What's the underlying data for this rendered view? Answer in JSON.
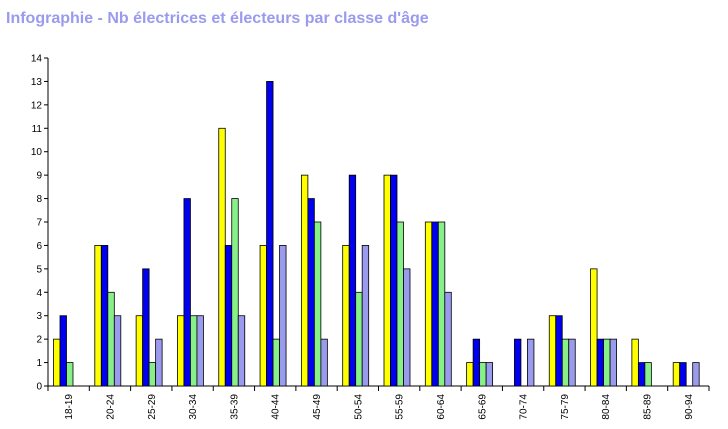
{
  "chart_data": {
    "type": "bar",
    "title": "Infographie - Nb électrices et électeurs par classe d'âge",
    "xlabel": "",
    "ylabel": "",
    "categories": [
      "18-19",
      "20-24",
      "25-29",
      "30-34",
      "35-39",
      "40-44",
      "45-49",
      "50-54",
      "55-59",
      "60-64",
      "65-69",
      "70-74",
      "75-79",
      "80-84",
      "85-89",
      "90-94"
    ],
    "ylim": [
      0,
      14
    ],
    "yticks": [
      0,
      1,
      2,
      3,
      4,
      5,
      6,
      7,
      8,
      9,
      10,
      11,
      12,
      13,
      14
    ],
    "grid": false,
    "legend": "none",
    "series": [
      {
        "color": "#ffff00",
        "values": [
          2,
          6,
          3,
          3,
          11,
          6,
          9,
          6,
          9,
          7,
          1,
          0,
          3,
          5,
          2,
          1
        ]
      },
      {
        "color": "#0000ee",
        "values": [
          3,
          6,
          5,
          8,
          6,
          13,
          8,
          9,
          9,
          7,
          2,
          2,
          3,
          2,
          1,
          1
        ]
      },
      {
        "color": "#88f088",
        "values": [
          1,
          4,
          1,
          3,
          8,
          2,
          7,
          4,
          7,
          7,
          1,
          0,
          2,
          2,
          1,
          0
        ]
      },
      {
        "color": "#9a9aee",
        "values": [
          0,
          3,
          2,
          3,
          3,
          6,
          2,
          6,
          5,
          4,
          1,
          2,
          2,
          2,
          0,
          1
        ]
      }
    ]
  }
}
